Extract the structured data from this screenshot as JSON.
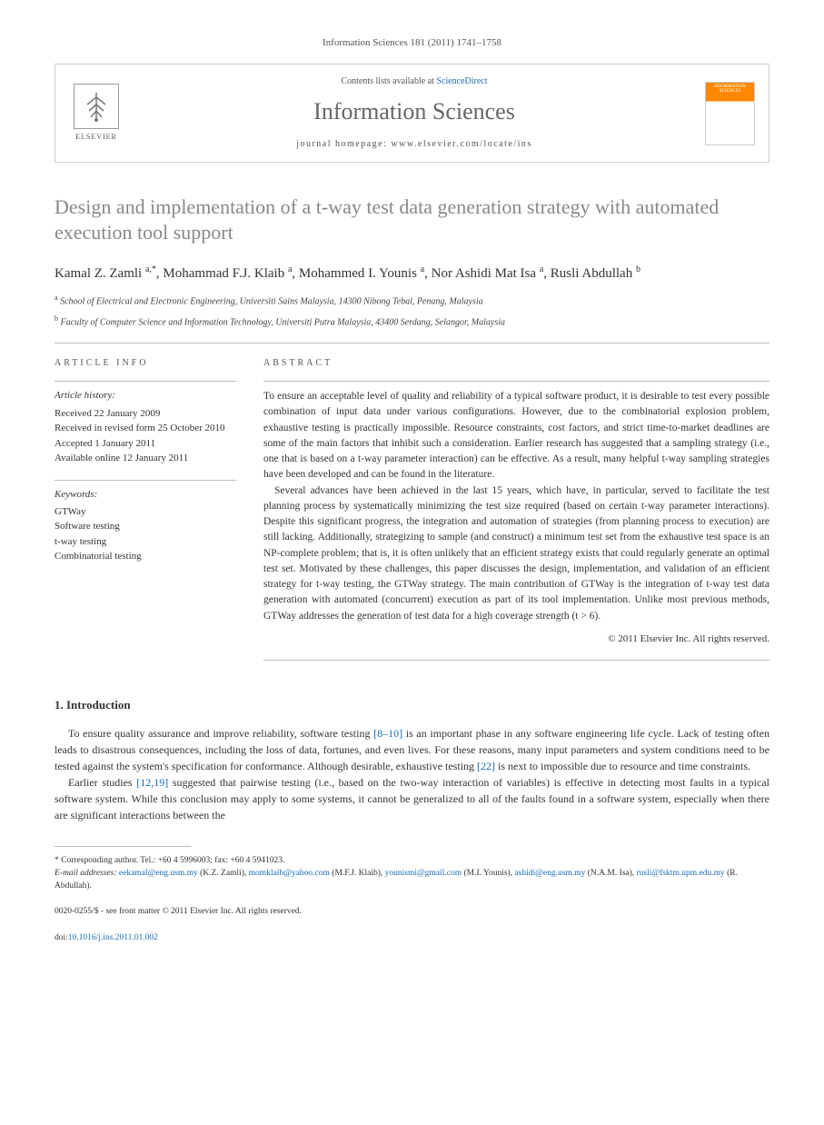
{
  "journal_ref": "Information Sciences 181 (2011) 1741–1758",
  "header": {
    "contents_text": "Contents lists available at ",
    "contents_link": "ScienceDirect",
    "journal_name": "Information Sciences",
    "homepage_text": "journal homepage: www.elsevier.com/locate/ins",
    "elsevier_label": "ELSEVIER",
    "cover_label": "INFORMATION SCIENCES"
  },
  "article": {
    "title": "Design and implementation of a t-way test data generation strategy with automated execution tool support",
    "authors_html": "Kamal Z. Zamli <sup>a,*</sup>, Mohammad F.J. Klaib <sup>a</sup>, Mohammed I. Younis <sup>a</sup>, Nor Ashidi Mat Isa <sup>a</sup>, Rusli Abdullah <sup>b</sup>",
    "affiliations": [
      "School of Electrical and Electronic Engineering, Universiti Sains Malaysia, 14300 Nibong Tebal, Penang, Malaysia",
      "Faculty of Computer Science and Information Technology, Universiti Putra Malaysia, 43400 Serdang, Selangor, Malaysia"
    ]
  },
  "info": {
    "section_label": "ARTICLE INFO",
    "history_heading": "Article history:",
    "history_lines": [
      "Received 22 January 2009",
      "Received in revised form 25 October 2010",
      "Accepted 1 January 2011",
      "Available online 12 January 2011"
    ],
    "keywords_heading": "Keywords:",
    "keywords": [
      "GTWay",
      "Software testing",
      "t-way testing",
      "Combinatorial testing"
    ]
  },
  "abstract": {
    "section_label": "ABSTRACT",
    "paragraphs": [
      "To ensure an acceptable level of quality and reliability of a typical software product, it is desirable to test every possible combination of input data under various configurations. However, due to the combinatorial explosion problem, exhaustive testing is practically impossible. Resource constraints, cost factors, and strict time-to-market deadlines are some of the main factors that inhibit such a consideration. Earlier research has suggested that a sampling strategy (i.e., one that is based on a t-way parameter interaction) can be effective. As a result, many helpful t-way sampling strategies have been developed and can be found in the literature.",
      "Several advances have been achieved in the last 15 years, which have, in particular, served to facilitate the test planning process by systematically minimizing the test size required (based on certain t-way parameter interactions). Despite this significant progress, the integration and automation of strategies (from planning process to execution) are still lacking. Additionally, strategizing to sample (and construct) a minimum test set from the exhaustive test space is an NP-complete problem; that is, it is often unlikely that an efficient strategy exists that could regularly generate an optimal test set. Motivated by these challenges, this paper discusses the design, implementation, and validation of an efficient strategy for t-way testing, the GTWay strategy. The main contribution of GTWay is the integration of t-way test data generation with automated (concurrent) execution as part of its tool implementation. Unlike most previous methods, GTWay addresses the generation of test data for a high coverage strength (t > 6)."
    ],
    "copyright": "© 2011 Elsevier Inc. All rights reserved."
  },
  "intro": {
    "heading": "1. Introduction",
    "paragraphs": [
      "To ensure quality assurance and improve reliability, software testing [8–10] is an important phase in any software engineering life cycle. Lack of testing often leads to disastrous consequences, including the loss of data, fortunes, and even lives. For these reasons, many input parameters and system conditions need to be tested against the system's specification for conformance. Although desirable, exhaustive testing [22] is next to impossible due to resource and time constraints.",
      "Earlier studies [12,19] suggested that pairwise testing (i.e., based on the two-way interaction of variables) is effective in detecting most faults in a typical software system. While this conclusion may apply to some systems, it cannot be generalized to all of the faults found in a software system, especially when there are significant interactions between the"
    ],
    "ref_links": [
      "[8–10]",
      "[22]",
      "[12,19]"
    ]
  },
  "footer": {
    "corresponding": "* Corresponding author. Tel.: +60 4 5996003; fax: +60 4 5941023.",
    "email_label": "E-mail addresses:",
    "emails": [
      {
        "addr": "eekamal@eng.usm.my",
        "name": "(K.Z. Zamli)"
      },
      {
        "addr": "momklaib@yahoo.com",
        "name": "(M.F.J. Klaib)"
      },
      {
        "addr": "younismi@gmail.com",
        "name": "(M.I. Younis)"
      },
      {
        "addr": "ashidi@eng.usm.my",
        "name": "(N.A.M. Isa)"
      },
      {
        "addr": "rusli@fsktm.upm.edu.my",
        "name": "(R. Abdullah)"
      }
    ],
    "issn": "0020-0255/$ - see front matter © 2011 Elsevier Inc. All rights reserved.",
    "doi_label": "doi:",
    "doi": "10.1016/j.ins.2011.01.002"
  }
}
